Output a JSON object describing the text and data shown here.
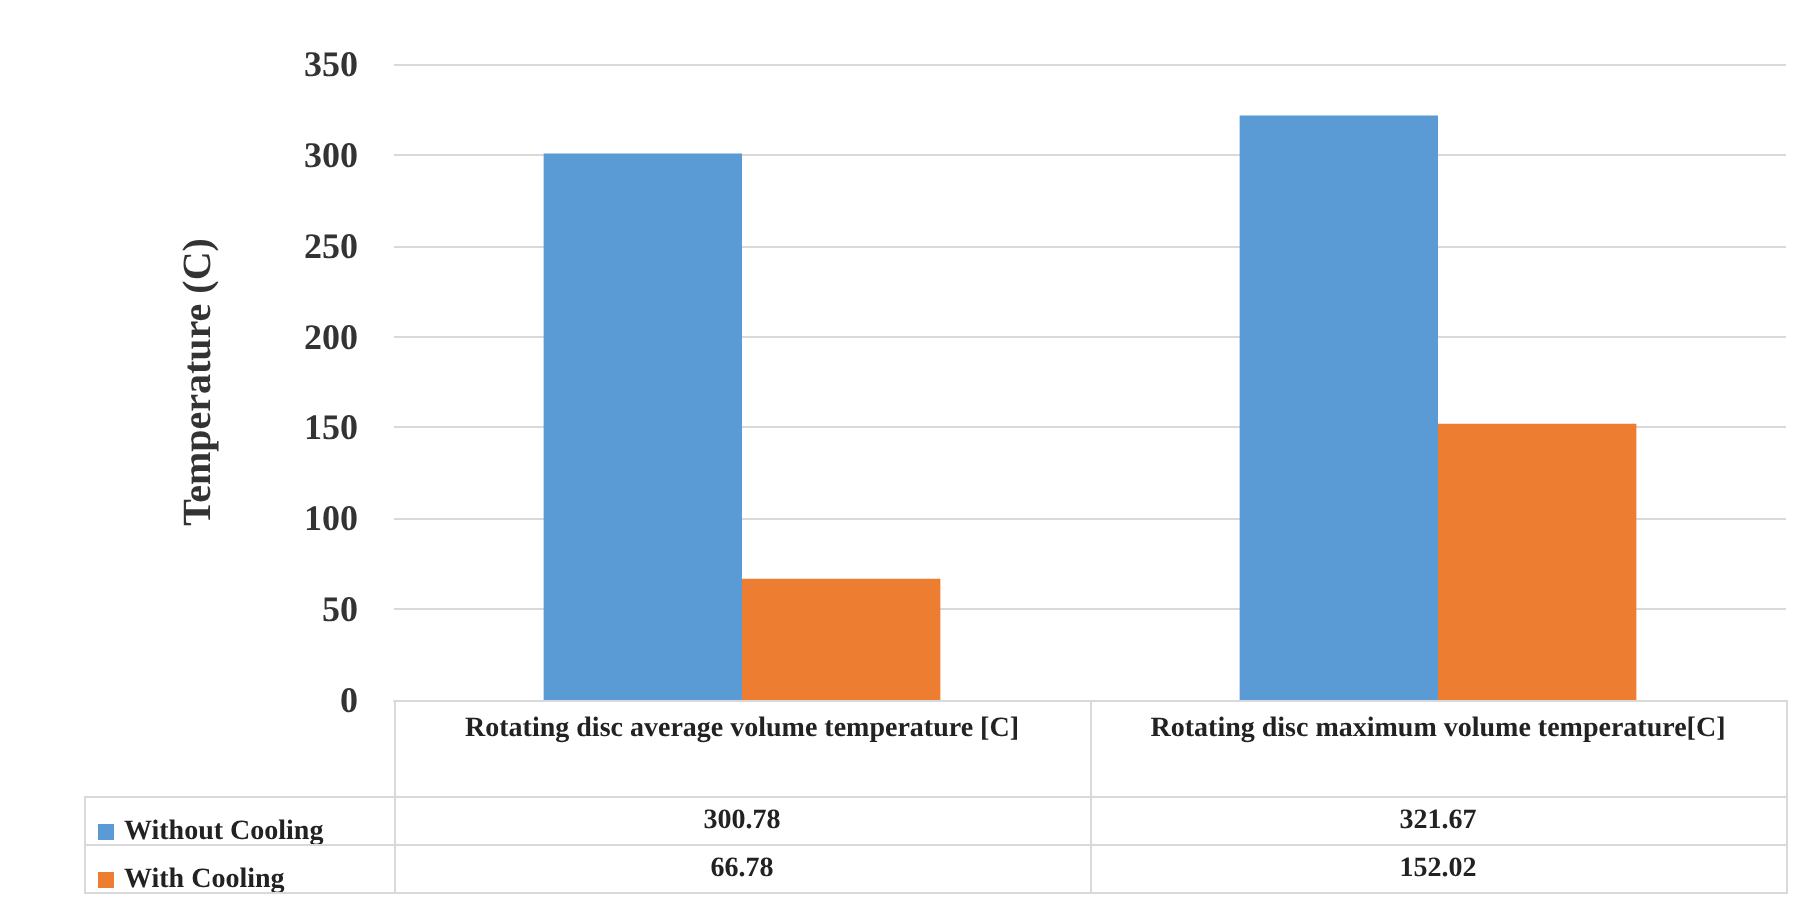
{
  "chart_data": {
    "type": "bar",
    "ylabel": "Temperature (C)",
    "categories": [
      "Rotating disc average volume temperature [C]",
      "Rotating disc maximum volume temperature[C]"
    ],
    "series": [
      {
        "name": "Without Cooling",
        "color": "#5b9bd5",
        "values": [
          300.78,
          321.67
        ]
      },
      {
        "name": "With Cooling",
        "color": "#ed7d31",
        "values": [
          66.78,
          152.02
        ]
      }
    ],
    "ylim": [
      0,
      350
    ],
    "yticks": [
      0,
      50,
      100,
      150,
      200,
      250,
      300,
      350
    ],
    "grid": "y",
    "legend": "bottom left",
    "data_labels": true
  }
}
